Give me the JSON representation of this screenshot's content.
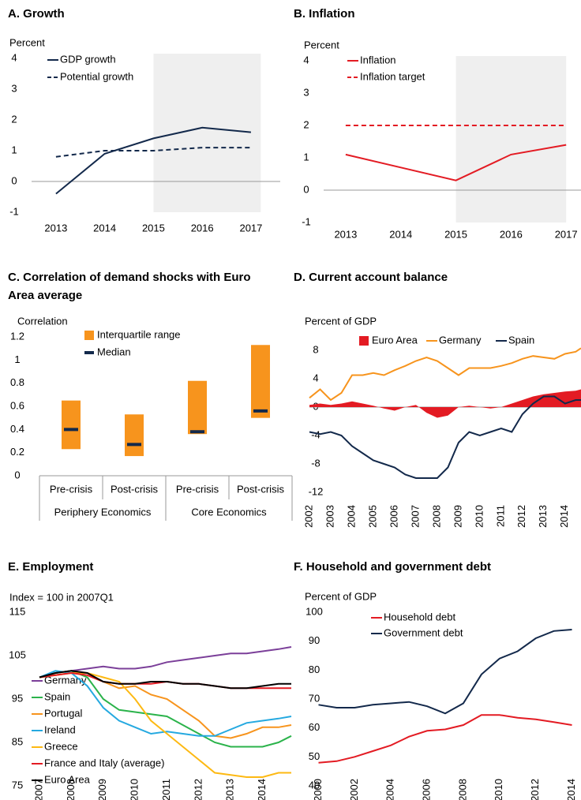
{
  "chart_data": [
    {
      "type": "line",
      "title": "A. Growth",
      "y_label": "Percent",
      "x": [
        2013,
        2014,
        2015,
        2016,
        2017
      ],
      "xlim": [
        2012.5,
        2017.6
      ],
      "xticks": [
        2013,
        2014,
        2015,
        2016,
        2017
      ],
      "ylim": [
        -1,
        4
      ],
      "yticks": [
        -1,
        0,
        1,
        2,
        3,
        4
      ],
      "shaded_range": [
        2015,
        2017.2
      ],
      "zero_line": true,
      "series": [
        {
          "name": "GDP growth",
          "color": "#13294b",
          "values": [
            -0.4,
            0.9,
            1.4,
            1.75,
            1.6
          ]
        },
        {
          "name": "Potential growth",
          "color": "#13294b",
          "dashed": true,
          "values": [
            0.8,
            1.0,
            1.0,
            1.1,
            1.1
          ]
        }
      ]
    },
    {
      "type": "line",
      "title": "B. Inflation",
      "y_label": "Percent",
      "x": [
        2013,
        2014,
        2015,
        2016,
        2017
      ],
      "xlim": [
        2012.6,
        2017.27
      ],
      "xticks": [
        2013,
        2014,
        2015,
        2016,
        2017
      ],
      "ylim": [
        -1,
        4
      ],
      "yticks": [
        -1,
        0,
        1,
        2,
        3,
        4
      ],
      "shaded_range": [
        2015,
        2017
      ],
      "zero_line": true,
      "series": [
        {
          "name": "Inflation",
          "color": "#e31b23",
          "values": [
            1.1,
            0.7,
            0.3,
            1.1,
            1.4
          ]
        },
        {
          "name": "Inflation target",
          "color": "#e31b23",
          "dashed": true,
          "values": [
            2,
            2,
            2,
            2,
            2
          ]
        }
      ]
    },
    {
      "type": "range_bar",
      "title": "C. Correlation of demand shocks with Euro Area average",
      "y_label": "Correlation",
      "categories": [
        "Pre-crisis",
        "Post-crisis",
        "Pre-crisis",
        "Post-crisis"
      ],
      "groups": [
        "Periphery Economics",
        "Core Economics"
      ],
      "ylim": [
        0,
        1.2
      ],
      "yticks": [
        0,
        0.2,
        0.4,
        0.6,
        0.8,
        1,
        1.2
      ],
      "series": [
        {
          "name": "Interquartile range",
          "color": "#f7941d",
          "low": [
            0.23,
            0.17,
            0.36,
            0.5
          ],
          "high": [
            0.65,
            0.53,
            0.82,
            1.13
          ]
        },
        {
          "name": "Median",
          "color": "#13294b",
          "values": [
            0.4,
            0.27,
            0.38,
            0.56
          ]
        }
      ]
    },
    {
      "type": "line",
      "title": "D. Current account balance",
      "y_label": "Percent of GDP",
      "x": [
        2002,
        2002.5,
        2003,
        2003.5,
        2004,
        2004.5,
        2005,
        2005.5,
        2006,
        2006.5,
        2007,
        2007.5,
        2008,
        2008.5,
        2009,
        2009.5,
        2010,
        2010.5,
        2011,
        2011.5,
        2012,
        2012.5,
        2013,
        2013.5,
        2014,
        2014.5,
        2014.75
      ],
      "xlim": [
        2002,
        2014.75
      ],
      "xticks": [
        2002,
        2003,
        2004,
        2005,
        2006,
        2007,
        2008,
        2009,
        2010,
        2011,
        2012,
        2013,
        2014
      ],
      "ylim": [
        -12,
        8
      ],
      "yticks": [
        -12,
        -8,
        -4,
        0,
        4,
        8
      ],
      "zero_line": true,
      "series": [
        {
          "name": "Euro Area",
          "color": "#e31b23",
          "area": true,
          "values": [
            0.3,
            0.5,
            0.3,
            0.5,
            0.8,
            0.5,
            0.2,
            -0.2,
            -0.5,
            0,
            0.3,
            -0.8,
            -1.5,
            -1.2,
            0,
            0.2,
            0,
            -0.2,
            0,
            0.5,
            1,
            1.5,
            1.8,
            2,
            2.2,
            2.3,
            2.5
          ]
        },
        {
          "name": "Germany",
          "color": "#f7941d",
          "values": [
            1.3,
            2.5,
            1,
            2,
            4.5,
            4.5,
            4.8,
            4.5,
            5.2,
            5.8,
            6.5,
            7,
            6.5,
            5.5,
            4.5,
            5.5,
            5.5,
            5.5,
            5.8,
            6.2,
            6.8,
            7.2,
            7,
            6.8,
            7.5,
            7.8,
            8.3
          ]
        },
        {
          "name": "Spain",
          "color": "#13294b",
          "values": [
            -3.5,
            -3.8,
            -3.5,
            -4,
            -5.5,
            -6.5,
            -7.5,
            -8,
            -8.5,
            -9.5,
            -10,
            -10,
            -10,
            -8.5,
            -5,
            -3.5,
            -4,
            -3.5,
            -3,
            -3.5,
            -1,
            0.5,
            1.5,
            1.5,
            0.5,
            1,
            1
          ]
        }
      ]
    },
    {
      "type": "line",
      "title": "E. Employment",
      "y_label": "Index = 100 in 2007Q1",
      "x": [
        2007,
        2007.5,
        2008,
        2008.5,
        2009,
        2009.5,
        2010,
        2010.5,
        2011,
        2011.5,
        2012,
        2012.5,
        2013,
        2013.5,
        2014,
        2014.5,
        2014.9
      ],
      "xlim": [
        2007,
        2015
      ],
      "xticks": [
        2007,
        2008,
        2009,
        2010,
        2011,
        2012,
        2013,
        2014
      ],
      "ylim": [
        75,
        115
      ],
      "yticks": [
        75,
        85,
        95,
        105,
        115
      ],
      "series": [
        {
          "name": "Germany",
          "color": "#7b3f99",
          "values": [
            100,
            101,
            101.5,
            102,
            102.5,
            102,
            102,
            102.5,
            103.5,
            104,
            104.5,
            105,
            105.5,
            105.5,
            106,
            106.5,
            107
          ]
        },
        {
          "name": "Spain",
          "color": "#2bb34b",
          "values": [
            100,
            101,
            101.5,
            100,
            95,
            92.5,
            92,
            91.5,
            91,
            89,
            87,
            85,
            84,
            84,
            84,
            85,
            86.5
          ]
        },
        {
          "name": "Portugal",
          "color": "#f7941d",
          "values": [
            100,
            100.5,
            101,
            100.5,
            99,
            97.5,
            98,
            96,
            95,
            92.5,
            90,
            86.5,
            86,
            87,
            88.5,
            88.5,
            89
          ]
        },
        {
          "name": "Ireland",
          "color": "#25a9e0",
          "values": [
            100,
            101.5,
            101,
            98,
            93,
            90,
            88.5,
            87,
            87.5,
            87,
            86.5,
            86.5,
            88,
            89.5,
            90,
            90.5,
            91
          ]
        },
        {
          "name": "Greece",
          "color": "#fdb913",
          "values": [
            100,
            100.5,
            101,
            101,
            100,
            99,
            95,
            90,
            87,
            84,
            81,
            78,
            77.5,
            77,
            77,
            78,
            78
          ]
        },
        {
          "name": "France and Italy (average)",
          "color": "#e31b23",
          "values": [
            100,
            100.5,
            101,
            100.5,
            99,
            98.5,
            98.5,
            98.5,
            99,
            98.5,
            98.5,
            98,
            97.5,
            97.5,
            97.5,
            97.5,
            97.5
          ]
        },
        {
          "name": "Euro Area",
          "color": "#000000",
          "values": [
            100,
            101,
            101.5,
            101,
            99,
            98.5,
            98.5,
            99,
            99,
            98.5,
            98.5,
            98,
            97.5,
            97.5,
            98,
            98.5,
            98.5
          ]
        }
      ]
    },
    {
      "type": "line",
      "title": "F. Household and government debt",
      "y_label": "Percent of GDP",
      "x": [
        2000,
        2001,
        2002,
        2003,
        2004,
        2005,
        2006,
        2007,
        2008,
        2009,
        2010,
        2011,
        2012,
        2013,
        2014
      ],
      "xlim": [
        1999.5,
        2014.5
      ],
      "xticks": [
        2000,
        2002,
        2004,
        2006,
        2008,
        2010,
        2012,
        2014
      ],
      "ylim": [
        40,
        100
      ],
      "yticks": [
        40,
        50,
        60,
        70,
        80,
        90,
        100
      ],
      "series": [
        {
          "name": "Household debt",
          "color": "#e31b23",
          "values": [
            48,
            48.5,
            50,
            52,
            54,
            57,
            59,
            59.5,
            61,
            64.5,
            64.5,
            63.5,
            63,
            62,
            61
          ]
        },
        {
          "name": "Government debt",
          "color": "#13294b",
          "values": [
            68,
            67,
            67,
            68,
            68.5,
            69,
            67.5,
            65,
            68.5,
            78.5,
            84,
            86.5,
            91,
            93.5,
            94
          ]
        }
      ]
    }
  ]
}
